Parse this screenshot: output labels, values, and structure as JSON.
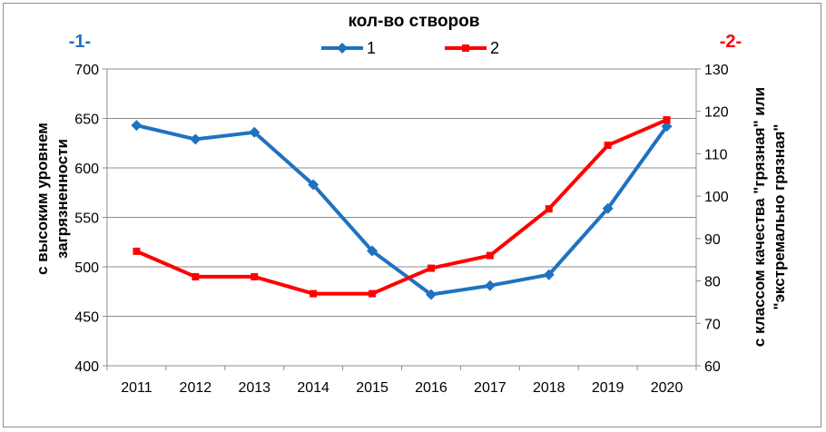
{
  "chart_data": {
    "type": "line",
    "title": "кол-во створов",
    "left_axis_marker": "-1-",
    "right_axis_marker": "-2-",
    "ylabel_left": [
      "с высоким  уровнем",
      "загрязненности"
    ],
    "ylabel_right": [
      "с классом качества \"грязная\" или",
      "\"экстремально грязная\""
    ],
    "categories": [
      "2011",
      "2012",
      "2013",
      "2014",
      "2015",
      "2016",
      "2017",
      "2018",
      "2019",
      "2020"
    ],
    "ylim_left": [
      400,
      700
    ],
    "yticks_left": [
      400,
      450,
      500,
      550,
      600,
      650,
      700
    ],
    "ylim_right": [
      60,
      130
    ],
    "yticks_right": [
      60,
      70,
      80,
      90,
      100,
      110,
      120,
      130
    ],
    "grid": true,
    "legend_position": "top-center",
    "series": [
      {
        "name": "1",
        "axis": "left",
        "color": "#1f72c0",
        "marker": "diamond",
        "values": [
          643,
          629,
          636,
          583,
          516,
          472,
          481,
          492,
          559,
          642
        ]
      },
      {
        "name": "2",
        "axis": "right",
        "color": "#ff0000",
        "marker": "square",
        "values": [
          87,
          81,
          81,
          77,
          77,
          83,
          86,
          97,
          112,
          118
        ]
      }
    ],
    "colors": {
      "left_marker": "#1f72c0",
      "right_marker": "#ff0000",
      "grid": "#8c8c8c"
    }
  }
}
